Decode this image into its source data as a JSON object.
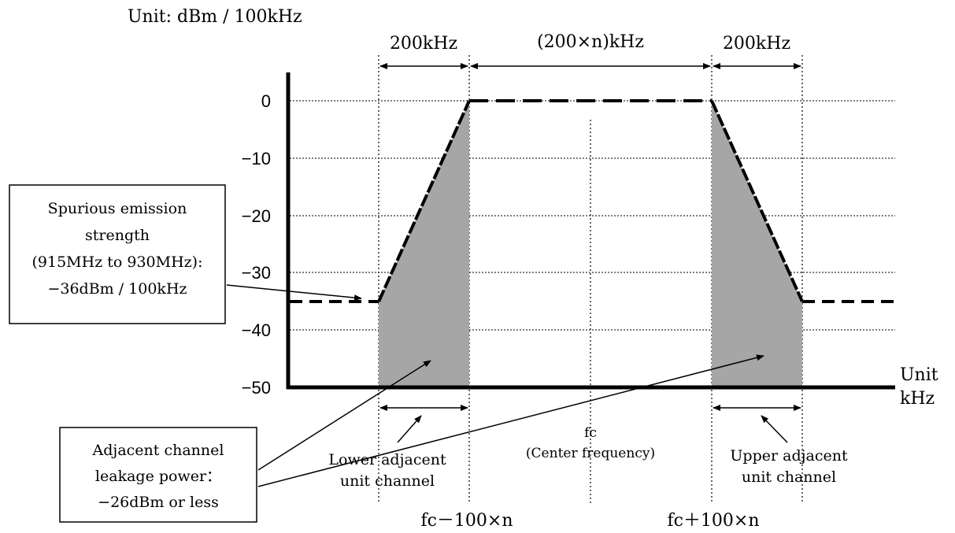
{
  "unit_label": "Unit: dBm / 100kHz",
  "x_unit": {
    "line1": "Unit",
    "line2": "kHz"
  },
  "y_ticks": [
    "0",
    "−10",
    "−20",
    "−30",
    "−40",
    "−50"
  ],
  "y_values": [
    0,
    -10,
    -20,
    -30,
    -40,
    -50
  ],
  "spans": {
    "lower": "200kHz",
    "center": "(200×n)kHz",
    "upper": "200kHz"
  },
  "center": {
    "line1": "fc",
    "line2": "(Center frequency)"
  },
  "freq_labels": {
    "lower": "fc－100×n",
    "upper": "fc＋100×n"
  },
  "channels": {
    "lower": {
      "line1": "Lower adjacent",
      "line2": "unit channel"
    },
    "upper": {
      "line1": "Upper adjacent",
      "line2": "unit channel"
    }
  },
  "spurious_box": {
    "line1": "Spurious emission",
    "line2": "strength",
    "line3": "(915MHz to 930MHz):",
    "line4": "−36dBm / 100kHz"
  },
  "leakage_box": {
    "line1": "Adjacent channel",
    "line2": "leakage power：",
    "line3": "−26dBm or less"
  },
  "mask_levels": {
    "spurious_dbm": -36,
    "inband_dbm": 0,
    "floor_dbm": -50
  },
  "colors": {
    "shade": "#a6a6a6",
    "line": "#000000",
    "grid": "#555555"
  }
}
